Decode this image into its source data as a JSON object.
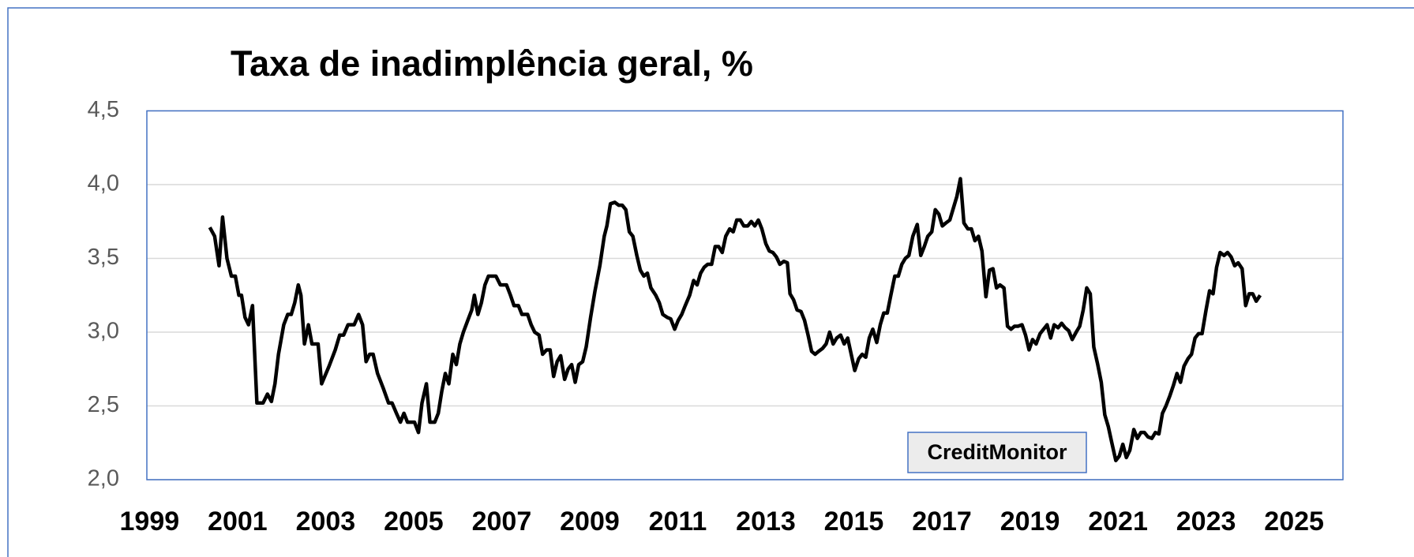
{
  "chart_data": {
    "type": "line",
    "title": "Taxa de inadimplência geral, %",
    "annotation": "CreditMonitor",
    "color": "#000000",
    "grid": true,
    "xlim": [
      1998.94,
      2026.11
    ],
    "xticks": [
      1999,
      2001,
      2003,
      2005,
      2007,
      2009,
      2011,
      2013,
      2015,
      2017,
      2019,
      2021,
      2023,
      2025
    ],
    "ylim": [
      2,
      4.5
    ],
    "yticks": [
      {
        "value": 2,
        "label": "2,0"
      },
      {
        "value": 2.5,
        "label": "2,5"
      },
      {
        "value": 3,
        "label": "3,0"
      },
      {
        "value": 3.5,
        "label": "3,5"
      },
      {
        "value": 4,
        "label": "4,0"
      },
      {
        "value": 4.5,
        "label": "4,5"
      }
    ],
    "x": [
      2000.37,
      2000.48,
      2000.58,
      2000.66,
      2000.76,
      2000.86,
      2000.95,
      2001.03,
      2001.09,
      2001.17,
      2001.25,
      2001.34,
      2001.44,
      2001.58,
      2001.68,
      2001.77,
      2001.85,
      2001.93,
      2002.05,
      2002.14,
      2002.22,
      2002.3,
      2002.38,
      2002.44,
      2002.52,
      2002.61,
      2002.69,
      2002.83,
      2002.91,
      2003.08,
      2003.22,
      2003.32,
      2003.41,
      2003.51,
      2003.65,
      2003.75,
      2003.84,
      2003.92,
      2004.0,
      2004.08,
      2004.18,
      2004.31,
      2004.43,
      2004.51,
      2004.61,
      2004.7,
      2004.78,
      2004.86,
      2005.02,
      2005.11,
      2005.19,
      2005.29,
      2005.37,
      2005.48,
      2005.56,
      2005.64,
      2005.72,
      2005.8,
      2005.89,
      2005.97,
      2006.05,
      2006.13,
      2006.23,
      2006.32,
      2006.38,
      2006.46,
      2006.54,
      2006.62,
      2006.7,
      2006.87,
      2006.97,
      2007.11,
      2007.2,
      2007.28,
      2007.38,
      2007.46,
      2007.59,
      2007.67,
      2007.75,
      2007.85,
      2007.93,
      2008.02,
      2008.1,
      2008.18,
      2008.26,
      2008.34,
      2008.43,
      2008.51,
      2008.59,
      2008.67,
      2008.75,
      2008.84,
      2008.92,
      2009.02,
      2009.12,
      2009.23,
      2009.33,
      2009.39,
      2009.47,
      2009.57,
      2009.66,
      2009.74,
      2009.82,
      2009.9,
      2009.98,
      2010.07,
      2010.15,
      2010.23,
      2010.31,
      2010.39,
      2010.5,
      2010.58,
      2010.66,
      2010.76,
      2010.84,
      2010.93,
      2011.01,
      2011.09,
      2011.17,
      2011.27,
      2011.36,
      2011.44,
      2011.52,
      2011.6,
      2011.68,
      2011.77,
      2011.85,
      2011.93,
      2012.01,
      2012.09,
      2012.18,
      2012.26,
      2012.34,
      2012.42,
      2012.5,
      2012.59,
      2012.67,
      2012.75,
      2012.83,
      2012.91,
      2013.0,
      2013.08,
      2013.16,
      2013.24,
      2013.32,
      2013.41,
      2013.49,
      2013.55,
      2013.63,
      2013.71,
      2013.8,
      2013.88,
      2013.96,
      2014.04,
      2014.12,
      2014.2,
      2014.29,
      2014.37,
      2014.45,
      2014.53,
      2014.61,
      2014.7,
      2014.78,
      2014.86,
      2014.94,
      2015.02,
      2015.11,
      2015.19,
      2015.27,
      2015.35,
      2015.43,
      2015.52,
      2015.6,
      2015.68,
      2015.76,
      2015.84,
      2015.93,
      2016.01,
      2016.09,
      2016.17,
      2016.25,
      2016.34,
      2016.44,
      2016.52,
      2016.6,
      2016.68,
      2016.77,
      2016.85,
      2016.93,
      2017.01,
      2017.09,
      2017.18,
      2017.26,
      2017.34,
      2017.42,
      2017.5,
      2017.59,
      2017.67,
      2017.75,
      2017.83,
      2017.91,
      2018.0,
      2018.08,
      2018.16,
      2018.24,
      2018.32,
      2018.41,
      2018.49,
      2018.57,
      2018.65,
      2018.73,
      2018.82,
      2018.9,
      2018.98,
      2019.06,
      2019.14,
      2019.23,
      2019.31,
      2019.39,
      2019.47,
      2019.55,
      2019.64,
      2019.72,
      2019.8,
      2019.88,
      2019.96,
      2020.05,
      2020.13,
      2020.21,
      2020.29,
      2020.37,
      2020.45,
      2020.54,
      2020.62,
      2020.7,
      2020.78,
      2020.86,
      2020.95,
      2021.03,
      2021.11,
      2021.19,
      2021.27,
      2021.36,
      2021.44,
      2021.52,
      2021.6,
      2021.68,
      2021.77,
      2021.85,
      2021.93,
      2022.01,
      2022.09,
      2022.18,
      2022.26,
      2022.34,
      2022.42,
      2022.5,
      2022.59,
      2022.67,
      2022.75,
      2022.83,
      2022.91,
      2023.0,
      2023.08,
      2023.16,
      2023.24,
      2023.32,
      2023.41,
      2023.49,
      2023.57,
      2023.65,
      2023.73,
      2023.82,
      2023.9,
      2023.98,
      2024.06,
      2024.14,
      2024.23
    ],
    "values": [
      3.71,
      3.65,
      3.45,
      3.78,
      3.5,
      3.38,
      3.38,
      3.25,
      3.25,
      3.1,
      3.05,
      3.18,
      2.52,
      2.52,
      2.58,
      2.53,
      2.65,
      2.85,
      3.05,
      3.12,
      3.12,
      3.2,
      3.32,
      3.25,
      2.92,
      3.05,
      2.92,
      2.92,
      2.65,
      2.77,
      2.88,
      2.98,
      2.98,
      3.05,
      3.05,
      3.12,
      3.05,
      2.8,
      2.85,
      2.85,
      2.72,
      2.62,
      2.52,
      2.52,
      2.45,
      2.39,
      2.45,
      2.39,
      2.39,
      2.32,
      2.52,
      2.65,
      2.39,
      2.39,
      2.45,
      2.6,
      2.72,
      2.65,
      2.85,
      2.78,
      2.92,
      3.0,
      3.08,
      3.15,
      3.25,
      3.12,
      3.2,
      3.32,
      3.38,
      3.38,
      3.32,
      3.32,
      3.25,
      3.18,
      3.18,
      3.12,
      3.12,
      3.05,
      3.0,
      2.98,
      2.85,
      2.88,
      2.88,
      2.7,
      2.8,
      2.84,
      2.68,
      2.75,
      2.78,
      2.66,
      2.78,
      2.8,
      2.9,
      3.1,
      3.28,
      3.45,
      3.65,
      3.72,
      3.87,
      3.88,
      3.86,
      3.86,
      3.83,
      3.68,
      3.65,
      3.52,
      3.42,
      3.38,
      3.4,
      3.3,
      3.25,
      3.2,
      3.12,
      3.1,
      3.09,
      3.02,
      3.08,
      3.12,
      3.18,
      3.25,
      3.35,
      3.32,
      3.4,
      3.44,
      3.46,
      3.46,
      3.58,
      3.58,
      3.54,
      3.65,
      3.7,
      3.68,
      3.76,
      3.76,
      3.72,
      3.72,
      3.75,
      3.72,
      3.76,
      3.7,
      3.6,
      3.55,
      3.54,
      3.51,
      3.46,
      3.48,
      3.47,
      3.26,
      3.22,
      3.15,
      3.14,
      3.08,
      2.98,
      2.87,
      2.85,
      2.87,
      2.89,
      2.92,
      3.0,
      2.92,
      2.96,
      2.98,
      2.92,
      2.96,
      2.85,
      2.74,
      2.82,
      2.85,
      2.83,
      2.96,
      3.02,
      2.93,
      3.05,
      3.13,
      3.13,
      3.25,
      3.38,
      3.38,
      3.46,
      3.5,
      3.52,
      3.65,
      3.73,
      3.52,
      3.58,
      3.65,
      3.68,
      3.83,
      3.8,
      3.72,
      3.74,
      3.76,
      3.84,
      3.92,
      4.04,
      3.74,
      3.7,
      3.7,
      3.62,
      3.65,
      3.55,
      3.24,
      3.42,
      3.43,
      3.3,
      3.32,
      3.3,
      3.04,
      3.02,
      3.04,
      3.04,
      3.05,
      2.98,
      2.88,
      2.95,
      2.92,
      2.99,
      3.02,
      3.05,
      2.96,
      3.05,
      3.03,
      3.06,
      3.03,
      3.01,
      2.95,
      3.0,
      3.04,
      3.15,
      3.3,
      3.26,
      2.9,
      2.78,
      2.66,
      2.44,
      2.36,
      2.25,
      2.13,
      2.16,
      2.24,
      2.15,
      2.2,
      2.34,
      2.28,
      2.32,
      2.32,
      2.29,
      2.28,
      2.32,
      2.31,
      2.45,
      2.5,
      2.57,
      2.64,
      2.72,
      2.66,
      2.77,
      2.82,
      2.85,
      2.96,
      2.99,
      2.99,
      3.15,
      3.28,
      3.26,
      3.44,
      3.54,
      3.52,
      3.54,
      3.51,
      3.45,
      3.47,
      3.43,
      3.18,
      3.26,
      3.26,
      3.21,
      3.25
    ]
  }
}
